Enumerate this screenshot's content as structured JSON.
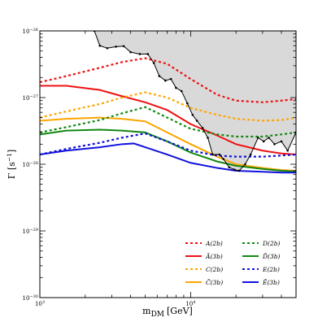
{
  "chart_data": {
    "type": "line",
    "xlabel": "m",
    "xlabel_sub": "DM",
    "xlabel_unit": "[GeV]",
    "ylabel": "Γ [s",
    "ylabel_sup": "−1",
    "ylabel_close": "]",
    "x_scale": "log",
    "y_scale": "log",
    "xlim": [
      1000,
      50000
    ],
    "ylim": [
      1e-30,
      1e-26
    ],
    "x_ticks": [
      {
        "value": 1000,
        "label": "10",
        "sup": "3"
      },
      {
        "value": 10000,
        "label": "10",
        "sup": "4"
      }
    ],
    "y_ticks": [
      {
        "value": 1e-30,
        "label": "10",
        "sup": "−30"
      },
      {
        "value": 1e-29,
        "label": "10",
        "sup": "−29"
      },
      {
        "value": 1e-28,
        "label": "10",
        "sup": "−28"
      },
      {
        "value": 1e-27,
        "label": "10",
        "sup": "−27"
      },
      {
        "value": 1e-26,
        "label": "10",
        "sup": "−26"
      }
    ],
    "grid": false,
    "legend_position": "bottom-right",
    "excluded_region_color": "#d9d9d9",
    "series": [
      {
        "name": "A(2b)",
        "color": "#ee1111",
        "dash": true,
        "points": [
          [
            1000,
            1.7e-27
          ],
          [
            1500,
            2.1e-27
          ],
          [
            2500,
            2.8e-27
          ],
          [
            3500,
            3.4e-27
          ],
          [
            5000,
            3.9e-27
          ],
          [
            7000,
            3.2e-27
          ],
          [
            10000,
            1.9e-27
          ],
          [
            15000,
            1.1e-27
          ],
          [
            20000,
            9e-28
          ],
          [
            30000,
            8.5e-28
          ],
          [
            40000,
            9e-28
          ],
          [
            50000,
            9.5e-28
          ]
        ]
      },
      {
        "name": "Ã(3b)",
        "color": "#ee1111",
        "dash": false,
        "points": [
          [
            1000,
            1.5e-27
          ],
          [
            1500,
            1.5e-27
          ],
          [
            2500,
            1.3e-27
          ],
          [
            3500,
            1.05e-27
          ],
          [
            5000,
            8.5e-28
          ],
          [
            7000,
            6.5e-28
          ],
          [
            10000,
            4e-28
          ],
          [
            15000,
            2.7e-28
          ],
          [
            20000,
            2e-28
          ],
          [
            30000,
            1.6e-28
          ],
          [
            40000,
            1.45e-28
          ],
          [
            50000,
            1.4e-28
          ]
        ]
      },
      {
        "name": "C(2b)",
        "color": "#ffa500",
        "dash": true,
        "points": [
          [
            1000,
            5e-28
          ],
          [
            1500,
            6.2e-28
          ],
          [
            2500,
            8e-28
          ],
          [
            3500,
            1e-27
          ],
          [
            5000,
            1.2e-27
          ],
          [
            7000,
            1e-27
          ],
          [
            10000,
            7e-28
          ],
          [
            15000,
            5.5e-28
          ],
          [
            20000,
            4.8e-28
          ],
          [
            30000,
            4.5e-28
          ],
          [
            40000,
            4.6e-28
          ],
          [
            50000,
            5e-28
          ]
        ]
      },
      {
        "name": "C̃(3b)",
        "color": "#ffa500",
        "dash": false,
        "points": [
          [
            1000,
            4.5e-28
          ],
          [
            1500,
            4.8e-28
          ],
          [
            2500,
            5e-28
          ],
          [
            3500,
            4.8e-28
          ],
          [
            5000,
            4.4e-28
          ],
          [
            7000,
            3e-28
          ],
          [
            10000,
            2e-28
          ],
          [
            15000,
            1.3e-28
          ],
          [
            20000,
            1e-28
          ],
          [
            30000,
            8.8e-29
          ],
          [
            40000,
            8.2e-29
          ],
          [
            50000,
            8e-29
          ]
        ]
      },
      {
        "name": "D(2b)",
        "color": "#118811",
        "dash": true,
        "points": [
          [
            1000,
            3e-28
          ],
          [
            1500,
            3.6e-28
          ],
          [
            2500,
            4.6e-28
          ],
          [
            3500,
            5.8e-28
          ],
          [
            5000,
            7.2e-28
          ],
          [
            7000,
            5e-28
          ],
          [
            10000,
            3.4e-28
          ],
          [
            15000,
            2.8e-28
          ],
          [
            20000,
            2.6e-28
          ],
          [
            30000,
            2.6e-28
          ],
          [
            40000,
            2.8e-28
          ],
          [
            50000,
            3e-28
          ]
        ]
      },
      {
        "name": "D̃(3b)",
        "color": "#118811",
        "dash": false,
        "points": [
          [
            1000,
            2.8e-28
          ],
          [
            1500,
            3.2e-28
          ],
          [
            2500,
            3.3e-28
          ],
          [
            3500,
            3.2e-28
          ],
          [
            5000,
            3e-28
          ],
          [
            7000,
            2.2e-28
          ],
          [
            10000,
            1.5e-28
          ],
          [
            15000,
            1.1e-28
          ],
          [
            20000,
            9.5e-29
          ],
          [
            30000,
            8.5e-29
          ],
          [
            40000,
            8e-29
          ],
          [
            50000,
            7.8e-29
          ]
        ]
      },
      {
        "name": "E(2b)",
        "color": "#1111dd",
        "dash": true,
        "points": [
          [
            1000,
            1.4e-28
          ],
          [
            1500,
            1.7e-28
          ],
          [
            2500,
            2.1e-28
          ],
          [
            3500,
            2.5e-28
          ],
          [
            5000,
            2.9e-28
          ],
          [
            7000,
            2.2e-28
          ],
          [
            10000,
            1.6e-28
          ],
          [
            15000,
            1.35e-28
          ],
          [
            20000,
            1.3e-28
          ],
          [
            30000,
            1.3e-28
          ],
          [
            40000,
            1.35e-28
          ],
          [
            50000,
            1.4e-28
          ]
        ]
      },
      {
        "name": "Ẽ(3b)",
        "color": "#1111dd",
        "dash": false,
        "points": [
          [
            1000,
            1.4e-28
          ],
          [
            1500,
            1.6e-28
          ],
          [
            2500,
            1.8e-28
          ],
          [
            3500,
            2e-28
          ],
          [
            4200,
            2.05e-28
          ],
          [
            5000,
            1.8e-28
          ],
          [
            7000,
            1.4e-28
          ],
          [
            10000,
            1.05e-28
          ],
          [
            15000,
            8.8e-29
          ],
          [
            20000,
            8e-29
          ],
          [
            30000,
            7.7e-29
          ],
          [
            40000,
            7.5e-29
          ],
          [
            50000,
            7.5e-29
          ]
        ]
      }
    ],
    "limit_curve": {
      "color": "#000000",
      "points": [
        [
          2300,
          1e-26
        ],
        [
          2500,
          6e-27
        ],
        [
          2800,
          5.5e-27
        ],
        [
          3200,
          5.8e-27
        ],
        [
          3600,
          5.9e-27
        ],
        [
          4000,
          4.8e-27
        ],
        [
          4600,
          4.5e-27
        ],
        [
          5200,
          4.5e-27
        ],
        [
          5700,
          3.3e-27
        ],
        [
          6200,
          2.1e-27
        ],
        [
          6800,
          1.8e-27
        ],
        [
          7400,
          1.9e-27
        ],
        [
          8000,
          1.4e-27
        ],
        [
          8700,
          1.25e-27
        ],
        [
          9500,
          8.2e-28
        ],
        [
          10300,
          5.5e-28
        ],
        [
          11000,
          4.5e-28
        ],
        [
          12000,
          3.5e-28
        ],
        [
          13000,
          2.5e-28
        ],
        [
          14000,
          1.4e-28
        ],
        [
          15500,
          1.4e-28
        ],
        [
          16500,
          1.2e-28
        ],
        [
          18000,
          9e-29
        ],
        [
          19500,
          8.3e-29
        ],
        [
          21000,
          8e-29
        ],
        [
          23000,
          1e-28
        ],
        [
          25000,
          1.4e-28
        ],
        [
          28000,
          2.5e-28
        ],
        [
          30500,
          2.2e-28
        ],
        [
          33000,
          2.5e-28
        ],
        [
          36000,
          2e-28
        ],
        [
          40000,
          2.2e-28
        ],
        [
          44000,
          1.6e-28
        ],
        [
          50000,
          3e-28
        ]
      ]
    }
  }
}
